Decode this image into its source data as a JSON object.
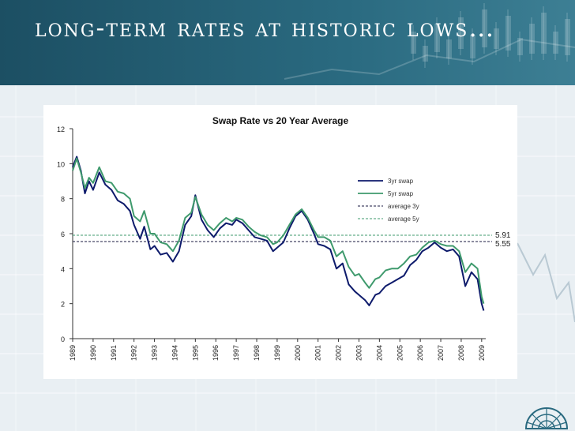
{
  "slide": {
    "title": "Long-term rates at historic lows…"
  },
  "colors": {
    "banner": "#1c4f63",
    "swap3y": "#0d1a6b",
    "swap5y": "#3f9a6d",
    "avg3y": "#1a1a40",
    "avg5y": "#3f9a6d"
  },
  "chart_data": {
    "type": "line",
    "title": "Swap Rate vs 20 Year Average",
    "xlabel": "",
    "ylabel": "",
    "xlim": [
      1989,
      2009.2
    ],
    "ylim": [
      0,
      12
    ],
    "yticks": [
      0,
      2,
      4,
      6,
      8,
      10,
      12
    ],
    "ytick_labels": [
      "0",
      "2",
      "4",
      "6",
      "8",
      "10",
      "12"
    ],
    "xtick_labels": [
      "1989",
      "1990",
      "1991",
      "1992",
      "1993",
      "1994",
      "1995",
      "1996",
      "1997",
      "1998",
      "1999",
      "2000",
      "2001",
      "2002",
      "2003",
      "2004",
      "2005",
      "2006",
      "2007",
      "2008",
      "2009"
    ],
    "grid": false,
    "legend": [
      "3yr swap",
      "5yr swap",
      "average 3y",
      "average 5y"
    ],
    "legend_position": "right",
    "series": [
      {
        "name": "3yr swap",
        "x": [
          1989.0,
          1989.2,
          1989.4,
          1989.6,
          1989.8,
          1990.0,
          1990.3,
          1990.6,
          1990.9,
          1991.2,
          1991.5,
          1991.8,
          1992.0,
          1992.3,
          1992.5,
          1992.8,
          1993.0,
          1993.3,
          1993.6,
          1993.9,
          1994.2,
          1994.5,
          1994.8,
          1995.0,
          1995.3,
          1995.6,
          1995.9,
          1996.2,
          1996.5,
          1996.8,
          1997.0,
          1997.3,
          1997.6,
          1997.9,
          1998.2,
          1998.5,
          1998.8,
          1999.0,
          1999.3,
          1999.6,
          1999.9,
          2000.2,
          2000.5,
          2000.8,
          2001.0,
          2001.3,
          2001.6,
          2001.9,
          2002.2,
          2002.5,
          2002.8,
          2003.0,
          2003.3,
          2003.5,
          2003.8,
          2004.0,
          2004.3,
          2004.6,
          2004.9,
          2005.2,
          2005.5,
          2005.8,
          2006.1,
          2006.4,
          2006.7,
          2007.0,
          2007.3,
          2007.6,
          2007.9,
          2008.2,
          2008.5,
          2008.8,
          2009.0,
          2009.1
        ],
        "values": [
          9.8,
          10.4,
          9.6,
          8.3,
          9.0,
          8.5,
          9.5,
          8.8,
          8.5,
          7.9,
          7.7,
          7.3,
          6.5,
          5.7,
          6.4,
          5.1,
          5.3,
          4.8,
          4.9,
          4.4,
          5.0,
          6.5,
          7.0,
          8.2,
          6.8,
          6.2,
          5.8,
          6.3,
          6.6,
          6.5,
          6.8,
          6.6,
          6.2,
          5.8,
          5.7,
          5.6,
          5.0,
          5.2,
          5.5,
          6.3,
          7.0,
          7.3,
          6.8,
          6.0,
          5.4,
          5.3,
          5.1,
          4.0,
          4.3,
          3.1,
          2.7,
          2.5,
          2.2,
          1.9,
          2.5,
          2.6,
          3.0,
          3.2,
          3.4,
          3.6,
          4.2,
          4.5,
          5.0,
          5.2,
          5.5,
          5.2,
          5.0,
          5.1,
          4.7,
          3.0,
          3.8,
          3.4,
          2.0,
          1.6
        ]
      },
      {
        "name": "5yr swap",
        "x": [
          1989.0,
          1989.2,
          1989.4,
          1989.6,
          1989.8,
          1990.0,
          1990.3,
          1990.6,
          1990.9,
          1991.2,
          1991.5,
          1991.8,
          1992.0,
          1992.3,
          1992.5,
          1992.8,
          1993.0,
          1993.3,
          1993.6,
          1993.9,
          1994.2,
          1994.5,
          1994.8,
          1995.0,
          1995.3,
          1995.6,
          1995.9,
          1996.2,
          1996.5,
          1996.8,
          1997.0,
          1997.3,
          1997.6,
          1997.9,
          1998.2,
          1998.5,
          1998.8,
          1999.0,
          1999.3,
          1999.6,
          1999.9,
          2000.2,
          2000.5,
          2000.8,
          2001.0,
          2001.3,
          2001.6,
          2001.9,
          2002.2,
          2002.5,
          2002.8,
          2003.0,
          2003.3,
          2003.5,
          2003.8,
          2004.0,
          2004.3,
          2004.6,
          2004.9,
          2005.2,
          2005.5,
          2005.8,
          2006.1,
          2006.4,
          2006.7,
          2007.0,
          2007.3,
          2007.6,
          2007.9,
          2008.2,
          2008.5,
          2008.8,
          2009.0,
          2009.1
        ],
        "values": [
          9.6,
          10.3,
          9.5,
          8.6,
          9.2,
          8.9,
          9.8,
          9.0,
          8.9,
          8.4,
          8.3,
          8.0,
          7.0,
          6.7,
          7.3,
          6.0,
          6.0,
          5.5,
          5.4,
          5.0,
          5.6,
          6.9,
          7.2,
          8.1,
          7.1,
          6.5,
          6.2,
          6.6,
          6.9,
          6.7,
          6.9,
          6.8,
          6.4,
          6.1,
          5.9,
          5.8,
          5.4,
          5.5,
          5.9,
          6.5,
          7.1,
          7.4,
          6.9,
          6.2,
          5.8,
          5.8,
          5.6,
          4.7,
          5.0,
          4.1,
          3.6,
          3.7,
          3.2,
          2.9,
          3.4,
          3.5,
          3.9,
          4.0,
          4.0,
          4.3,
          4.7,
          4.8,
          5.2,
          5.5,
          5.6,
          5.4,
          5.3,
          5.3,
          5.0,
          3.8,
          4.3,
          4.0,
          2.4,
          2.0
        ]
      },
      {
        "name": "average 3y",
        "constant": 5.55,
        "label": "5.55"
      },
      {
        "name": "average 5y",
        "constant": 5.91,
        "label": "5.91"
      }
    ]
  }
}
